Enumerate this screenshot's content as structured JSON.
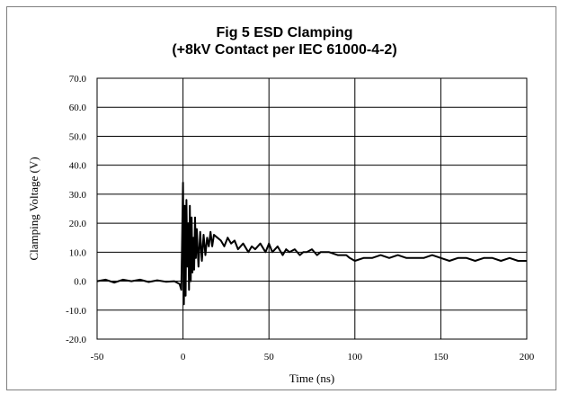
{
  "chart_data": {
    "type": "line",
    "title": "Fig 5 ESD Clamping",
    "subtitle": "(+8kV Contact per IEC 61000-4-2)",
    "xlabel": "Time (ns)",
    "ylabel": "Clamping Voltage (V)",
    "xlim": [
      -50,
      200
    ],
    "ylim": [
      -20,
      70
    ],
    "xticks": [
      -50,
      0,
      50,
      100,
      150,
      200
    ],
    "yticks": [
      70,
      60,
      50,
      40,
      30,
      20,
      10,
      0,
      -10,
      -20
    ],
    "xtick_labels": [
      "-50",
      "0",
      "50",
      "100",
      "150",
      "200"
    ],
    "ytick_labels": [
      "70.0",
      "60.0",
      "50.0",
      "40.0",
      "30.0",
      "20.0",
      "10.0",
      "0.0",
      "-10.0",
      "-20.0"
    ],
    "grid": true,
    "legend": "none",
    "line_color": "#000000",
    "series": [
      {
        "x": [
          -50,
          -45,
          -40,
          -35,
          -30,
          -25,
          -20,
          -15,
          -10,
          -5,
          -2,
          -1,
          0,
          0.5,
          1,
          1.5,
          2,
          2.5,
          3,
          3.5,
          4,
          4.5,
          5,
          5.5,
          6,
          6.5,
          7,
          7.5,
          8,
          9,
          10,
          11,
          12,
          13,
          14,
          15,
          16,
          17,
          18,
          20,
          22,
          24,
          26,
          28,
          30,
          32,
          35,
          38,
          40,
          42,
          45,
          48,
          50,
          52,
          55,
          58,
          60,
          62,
          65,
          68,
          70,
          72,
          75,
          78,
          80,
          85,
          90,
          95,
          97,
          100,
          105,
          110,
          115,
          120,
          125,
          130,
          135,
          140,
          145,
          150,
          155,
          160,
          165,
          170,
          175,
          180,
          185,
          190,
          195,
          200
        ],
        "y": [
          0,
          0.5,
          -0.5,
          0.5,
          0,
          0.5,
          -0.3,
          0.3,
          -0.2,
          0,
          -1,
          -3,
          34,
          -8,
          26,
          -5,
          28,
          5,
          20,
          -3,
          26,
          0,
          22,
          3,
          15,
          4,
          22,
          8,
          18,
          5,
          17,
          7,
          16,
          9,
          15,
          12,
          17,
          12,
          16,
          15,
          14,
          12,
          15,
          13,
          14,
          11,
          13,
          10,
          12,
          11,
          13,
          10,
          13,
          10,
          12,
          9,
          11,
          10,
          11,
          9,
          10,
          10,
          11,
          9,
          10,
          10,
          9,
          9,
          8,
          7,
          8,
          8,
          9,
          8,
          9,
          8,
          8,
          8,
          9,
          8,
          7,
          8,
          8,
          7,
          8,
          8,
          7,
          8,
          7,
          7
        ]
      }
    ]
  }
}
